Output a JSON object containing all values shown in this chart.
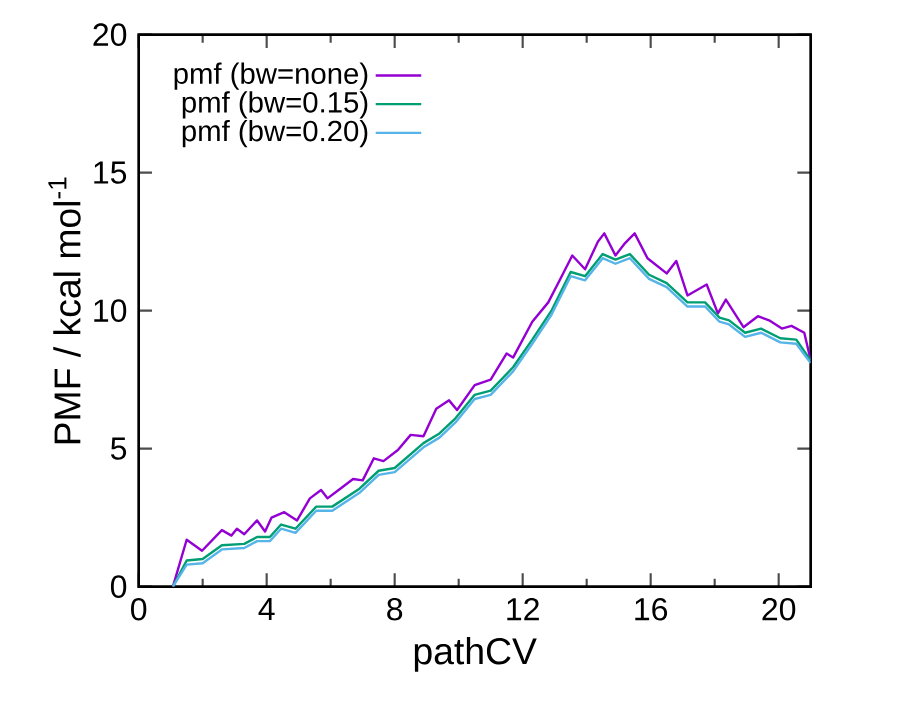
{
  "chart_data": {
    "type": "line",
    "xlabel": "pathCV",
    "ylabel": "PMF / kcal mol$^{-1}$",
    "xlim": [
      0,
      21
    ],
    "ylim": [
      0,
      20
    ],
    "xticks": [
      0,
      4,
      8,
      12,
      16,
      20
    ],
    "yticks": [
      0,
      5,
      10,
      15,
      20
    ],
    "legend": "top left",
    "grid": false,
    "marker": "none",
    "line_style": "solid",
    "series": [
      {
        "name": "pmf (bw=none)",
        "color": "#9400d3",
        "x": [
          1.07,
          1.5,
          1.98,
          2.6,
          2.9,
          3.07,
          3.3,
          3.7,
          3.95,
          4.15,
          4.55,
          4.95,
          5.35,
          5.7,
          5.9,
          6.3,
          6.7,
          7.0,
          7.35,
          7.65,
          8.1,
          8.5,
          8.9,
          9.3,
          9.7,
          9.95,
          10.5,
          11.0,
          11.5,
          11.7,
          12.3,
          12.8,
          13.2,
          13.55,
          13.95,
          14.35,
          14.55,
          14.9,
          15.2,
          15.5,
          15.9,
          16.5,
          16.8,
          17.15,
          17.75,
          18.1,
          18.35,
          18.9,
          19.35,
          19.7,
          20.1,
          20.4,
          20.8,
          21.0
        ],
        "values": [
          0,
          1.7,
          1.3,
          2.05,
          1.85,
          2.1,
          1.9,
          2.4,
          2.0,
          2.5,
          2.7,
          2.4,
          3.2,
          3.5,
          3.2,
          3.55,
          3.9,
          3.85,
          4.65,
          4.55,
          4.95,
          5.5,
          5.45,
          6.45,
          6.75,
          6.4,
          7.3,
          7.5,
          8.45,
          8.3,
          9.6,
          10.3,
          11.2,
          12.0,
          11.5,
          12.5,
          12.8,
          12.0,
          12.45,
          12.8,
          11.9,
          11.35,
          11.8,
          10.55,
          10.95,
          9.9,
          10.4,
          9.4,
          9.8,
          9.65,
          9.35,
          9.45,
          9.2,
          8.2
        ]
      },
      {
        "name": "pmf (bw=0.15)",
        "color": "#009e73",
        "x": [
          1.07,
          1.5,
          2.0,
          2.6,
          3.3,
          3.7,
          4.1,
          4.45,
          4.9,
          5.55,
          6.05,
          6.9,
          7.5,
          8.0,
          8.9,
          9.4,
          9.9,
          10.5,
          11.0,
          11.7,
          12.3,
          12.9,
          13.5,
          13.95,
          14.5,
          14.9,
          15.35,
          15.95,
          16.5,
          17.15,
          17.7,
          18.15,
          18.45,
          18.95,
          19.45,
          20.05,
          20.55,
          21.0
        ],
        "values": [
          0,
          0.95,
          1.0,
          1.5,
          1.55,
          1.8,
          1.8,
          2.25,
          2.1,
          2.9,
          2.9,
          3.55,
          4.2,
          4.3,
          5.2,
          5.55,
          6.1,
          6.95,
          7.1,
          7.95,
          8.95,
          10.0,
          11.4,
          11.25,
          12.05,
          11.85,
          12.05,
          11.3,
          11.0,
          10.3,
          10.3,
          9.75,
          9.65,
          9.2,
          9.35,
          9.0,
          8.95,
          8.2
        ]
      },
      {
        "name": "pmf (bw=0.20)",
        "color": "#56b4e9",
        "x": [
          1.07,
          1.5,
          2.0,
          2.6,
          3.3,
          3.7,
          4.1,
          4.45,
          4.9,
          5.55,
          6.05,
          6.9,
          7.5,
          8.0,
          8.9,
          9.4,
          9.9,
          10.5,
          11.0,
          11.7,
          12.3,
          12.9,
          13.5,
          13.95,
          14.5,
          14.9,
          15.35,
          15.95,
          16.5,
          17.15,
          17.7,
          18.15,
          18.45,
          18.95,
          19.45,
          20.05,
          20.55,
          21.0
        ],
        "values": [
          0,
          0.8,
          0.85,
          1.35,
          1.4,
          1.65,
          1.65,
          2.1,
          1.95,
          2.75,
          2.75,
          3.4,
          4.05,
          4.15,
          5.05,
          5.4,
          5.95,
          6.8,
          6.95,
          7.8,
          8.8,
          9.85,
          11.25,
          11.1,
          11.9,
          11.7,
          11.9,
          11.15,
          10.85,
          10.15,
          10.15,
          9.6,
          9.5,
          9.05,
          9.2,
          8.85,
          8.8,
          8.1
        ]
      }
    ]
  }
}
